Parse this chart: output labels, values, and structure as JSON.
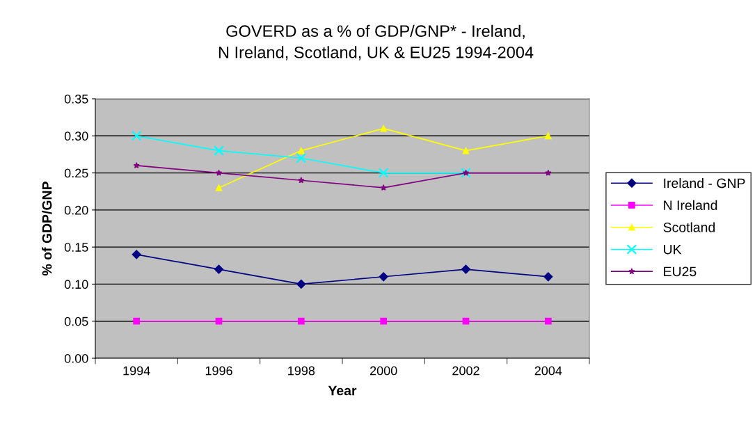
{
  "chart_data": {
    "type": "line",
    "title": "GOVERD as a % of GDP/GNP* - Ireland,\nN Ireland, Scotland, UK & EU25 1994-2004",
    "xlabel": "Year",
    "ylabel": "% of GDP/GNP",
    "categories": [
      "1994",
      "1996",
      "1998",
      "2000",
      "2002",
      "2004"
    ],
    "series": [
      {
        "name": "Ireland - GNP",
        "color": "#000080",
        "marker": "diamond",
        "values": [
          0.14,
          0.12,
          0.1,
          0.11,
          0.12,
          0.11
        ]
      },
      {
        "name": "N Ireland",
        "color": "#ff00ff",
        "marker": "square",
        "values": [
          0.05,
          0.05,
          0.05,
          0.05,
          0.05,
          0.05
        ]
      },
      {
        "name": "Scotland",
        "color": "#ffff00",
        "marker": "triangle",
        "values": [
          null,
          0.23,
          0.28,
          0.31,
          0.28,
          0.3
        ]
      },
      {
        "name": "UK",
        "color": "#00ffff",
        "marker": "cross",
        "values": [
          0.3,
          0.28,
          0.27,
          0.25,
          0.25,
          null
        ]
      },
      {
        "name": "EU25",
        "color": "#800080",
        "marker": "star",
        "values": [
          0.26,
          0.25,
          0.24,
          0.23,
          0.25,
          0.25
        ]
      }
    ],
    "ylim": [
      0,
      0.35
    ],
    "yticks": [
      {
        "value": 0,
        "label": "0.00"
      },
      {
        "value": 0.05,
        "label": "0.05"
      },
      {
        "value": 0.1,
        "label": "0.10"
      },
      {
        "value": 0.15,
        "label": "0.15"
      },
      {
        "value": 0.2,
        "label": "0.20"
      },
      {
        "value": 0.25,
        "label": "0.25"
      },
      {
        "value": 0.3,
        "label": "0.30"
      },
      {
        "value": 0.35,
        "label": "0.35"
      }
    ],
    "grid": "y",
    "legend": "right",
    "line_style": "solid"
  }
}
